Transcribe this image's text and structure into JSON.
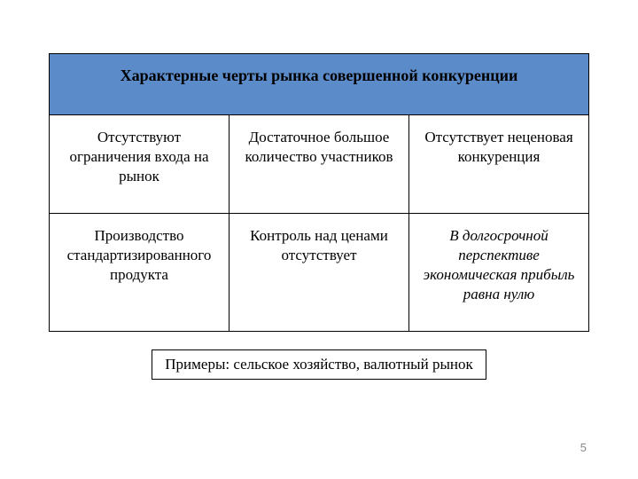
{
  "header": {
    "title": "Характерные черты рынка совершенной конкуренции",
    "background_color": "#5b8bc8",
    "fontsize": 18
  },
  "table": {
    "type": "table",
    "columns": 3,
    "rows": [
      {
        "cells": [
          {
            "text": "Отсутствуют ограничения входа на рынок",
            "italic": false
          },
          {
            "text": "Достаточное большое количество участников",
            "italic": false
          },
          {
            "text": "Отсутствует неценовая конкуренция",
            "italic": false
          }
        ]
      },
      {
        "cells": [
          {
            "text": "Производство стандартизированного продукта",
            "italic": false
          },
          {
            "text": "Контроль над ценами отсутствует",
            "italic": false
          },
          {
            "text": "В долгосрочной перспективе экономическая прибыль равна нулю",
            "italic": true
          }
        ]
      }
    ],
    "border_color": "#000000",
    "cell_fontsize": 17
  },
  "examples": {
    "text": "Примеры: сельское хозяйство, валютный рынок",
    "fontsize": 17
  },
  "page_number": "5",
  "background_color": "#ffffff"
}
